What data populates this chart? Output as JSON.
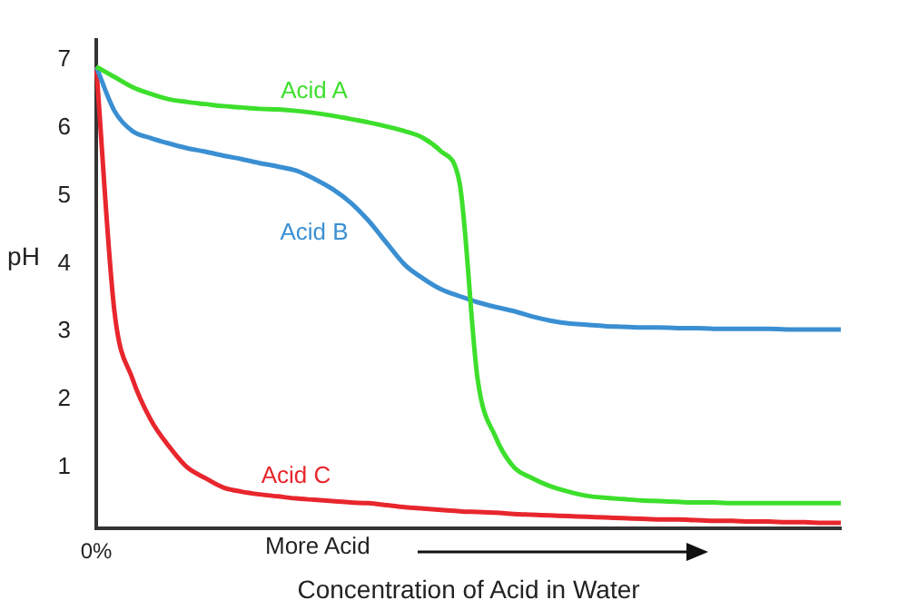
{
  "chart_data": {
    "type": "line",
    "xlabel": "Concentration of Acid in Water",
    "ylabel": "pH",
    "categories": [
      "0%",
      null,
      null,
      null,
      null,
      null,
      null,
      null,
      null,
      null,
      null,
      null,
      null,
      null,
      null,
      null,
      null,
      null,
      null,
      null,
      null,
      null,
      null,
      null,
      null,
      null,
      null,
      null,
      null,
      null,
      null,
      null,
      null,
      null,
      null,
      null,
      null,
      null,
      null,
      null,
      null,
      null
    ],
    "series": [
      {
        "name": "Acid A",
        "color": "#3ddf2c",
        "values": [
          6.9,
          6.75,
          6.6,
          6.5,
          6.42,
          6.38,
          6.35,
          6.32,
          6.3,
          6.28,
          6.27,
          6.25,
          6.22,
          6.18,
          6.13,
          6.08,
          6.02,
          5.95,
          5.85,
          5.65,
          5.2,
          2.3,
          1.44,
          1.0,
          0.84,
          0.72,
          0.64,
          0.58,
          0.55,
          0.53,
          0.51,
          0.5,
          0.49,
          0.48,
          0.48,
          0.47,
          0.47,
          0.47,
          0.47,
          0.47,
          0.47,
          0.47
        ]
      },
      {
        "name": "Acid B",
        "color": "#3a8fd2",
        "values": [
          6.9,
          6.25,
          5.95,
          5.85,
          5.77,
          5.7,
          5.65,
          5.59,
          5.54,
          5.48,
          5.43,
          5.37,
          5.25,
          5.1,
          4.9,
          4.63,
          4.3,
          3.98,
          3.78,
          3.62,
          3.52,
          3.43,
          3.36,
          3.3,
          3.22,
          3.16,
          3.12,
          3.1,
          3.08,
          3.07,
          3.06,
          3.06,
          3.05,
          3.05,
          3.04,
          3.04,
          3.04,
          3.04,
          3.03,
          3.03,
          3.03,
          3.03
        ]
      },
      {
        "name": "Acid C",
        "color": "#e8262d",
        "values": [
          6.9,
          3.3,
          2.3,
          1.7,
          1.31,
          1.0,
          0.84,
          0.7,
          0.64,
          0.6,
          0.57,
          0.54,
          0.52,
          0.5,
          0.48,
          0.47,
          0.44,
          0.41,
          0.39,
          0.37,
          0.35,
          0.34,
          0.33,
          0.31,
          0.3,
          0.29,
          0.28,
          0.27,
          0.26,
          0.25,
          0.24,
          0.23,
          0.23,
          0.22,
          0.21,
          0.21,
          0.2,
          0.2,
          0.19,
          0.19,
          0.18,
          0.18
        ]
      }
    ],
    "ylim": [
      0.1,
      7.3
    ],
    "yticks": [
      1,
      2,
      3,
      4,
      5,
      6,
      7
    ],
    "grid": false,
    "legend": false,
    "marker": "none",
    "line_style": "solid",
    "annotations": [
      "More Acid"
    ]
  }
}
